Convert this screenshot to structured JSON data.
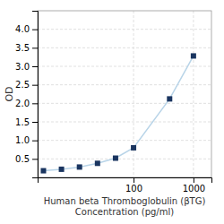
{
  "chart_data": {
    "type": "line",
    "xlabel": "Human beta Thromboglobulin (βTG)\nConcentration (pg/ml)",
    "ylabel": "OD",
    "x": [
      3.125,
      6.25,
      12.5,
      25,
      50,
      100,
      400,
      1000
    ],
    "values": [
      0.18,
      0.22,
      0.28,
      0.38,
      0.52,
      0.8,
      2.12,
      3.28
    ],
    "color": "#b8d4e8",
    "colors": [
      "#1a3560",
      "#1a3560",
      "#1a3560",
      "#1a3560",
      "#1a3560",
      "#1a3560",
      "#1a3560",
      "#1a3560"
    ],
    "marker": "square",
    "log": "x",
    "xlim": [
      2.5,
      2000
    ],
    "xticks": [
      100,
      1000
    ],
    "ylim": [
      0.0,
      4.5
    ],
    "yticks": [
      0.5,
      {
        "value": 1.0,
        "label": "1.0"
      },
      1.5,
      {
        "value": 2.0,
        "label": "2.0"
      },
      2.5,
      {
        "value": 3.0,
        "label": "3.0"
      },
      3.5,
      {
        "value": 4.0,
        "label": "4.0"
      }
    ],
    "grid": true
  }
}
